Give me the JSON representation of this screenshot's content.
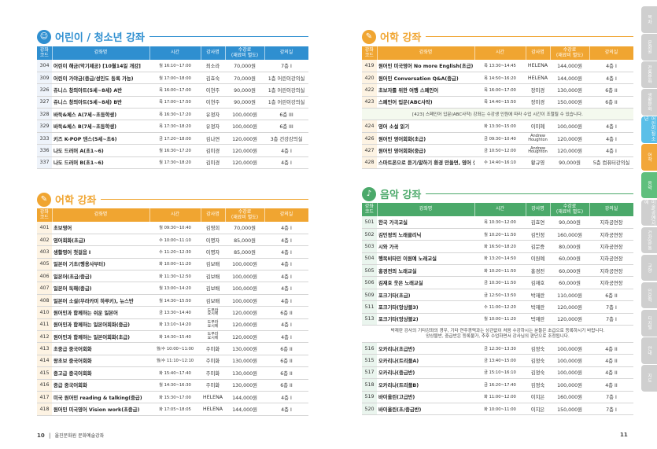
{
  "left": {
    "youth": {
      "title": "어린이 / 청소년 강좌",
      "headers": [
        "강좌\n코드",
        "강좌명",
        "시간",
        "강사명",
        "수강료\n(재료비 별도)",
        "강의실"
      ],
      "rows": [
        [
          "304",
          "어린이 해금(악기제공) [10월14일 개강]",
          "월 16:10~17:00",
          "최소라",
          "70,000원",
          "7층 I"
        ],
        [
          "309",
          "어린이 가야금(중급/성인도 등록 가능)",
          "월 17:00~18:00",
          "김효숙",
          "70,000원",
          "1층 어린이강의실"
        ],
        [
          "326",
          "쥬니스 창의아트(5세~8세) A반",
          "목 16:00~17:00",
          "이현주",
          "90,000원",
          "1층 어린이강의실"
        ],
        [
          "327",
          "쥬니스 창의아트(5세~8세) B반",
          "목 17:00~17:50",
          "이현주",
          "90,000원",
          "1층 어린이강의실"
        ],
        [
          "328",
          "바둑&체스 A(7세~초등학생)",
          "목 16:30~17:20",
          "유정자",
          "100,000원",
          "6층 III"
        ],
        [
          "329",
          "바둑&체스 B(7세~초등학생)",
          "목 17:30~18:20",
          "유정자",
          "100,000원",
          "6층 III"
        ],
        [
          "333",
          "키즈 K-POP 댄스(5세~초6)",
          "금 17:20~18:00",
          "김나연",
          "120,000원",
          "3층 건강강의실"
        ],
        [
          "336",
          "나도 드러머 A(초1~6)",
          "월 16:30~17:20",
          "김미경",
          "120,000원",
          "4층 I"
        ],
        [
          "337",
          "나도 드러머 B(초1~6)",
          "월 17:30~18:20",
          "김미경",
          "120,000원",
          "4층 I"
        ]
      ]
    },
    "lang": {
      "title": "어학 강좌",
      "headers": [
        "강좌\n코드",
        "강좌명",
        "시간",
        "강사명",
        "수강료\n(재료비 별도)",
        "강의실"
      ],
      "rows": [
        [
          "401",
          "초보영어",
          "월 09:30~10:40",
          "김영희",
          "70,000원",
          "4층 I"
        ],
        [
          "402",
          "영어회화(초급)",
          "수 10:00~11:10",
          "이명자",
          "85,000원",
          "4층 I"
        ],
        [
          "403",
          "생활영어 첫걸음 I",
          "수 11:20~12:30",
          "이명자",
          "85,000원",
          "4층 I"
        ],
        [
          "405",
          "일본어 기초(행용사부터)",
          "화 10:00~11:20",
          "김보배",
          "100,000원",
          "4층 I"
        ],
        [
          "406",
          "일본어(초급/중급)",
          "화 11:30~12:50",
          "김보배",
          "100,000원",
          "4층 I"
        ],
        [
          "407",
          "일본어 독해(중급)",
          "월 13:00~14:20",
          "김보배",
          "100,000원",
          "4층 I"
        ],
        [
          "408",
          "일본어 소설(무라카미 하루키), 뉴스반",
          "월 14:30~15:50",
          "김보배",
          "100,000원",
          "4층 I"
        ],
        [
          "410",
          "원어민과 함께하는 쉬운 일본어",
          "금 13:30~14:40",
          "도무라\n요시에",
          "120,000원",
          "6층 II"
        ],
        [
          "411",
          "원어민과 함께하는 일본어회화(중급)",
          "화 13:10~14:20",
          "도무라\n요시에",
          "120,000원",
          "4층 I"
        ],
        [
          "412",
          "원어민과 함께하는 일본어회화(초급)",
          "화 14:30~15:40",
          "도무라\n요시에",
          "120,000원",
          "4층 I"
        ],
        [
          "413",
          "초중급 중국어회화",
          "월/수 10:00~11:00",
          "주미화",
          "130,000원",
          "6층 II"
        ],
        [
          "414",
          "왕초보 중국어회화",
          "월/수 11:10~12:10",
          "주미화",
          "130,000원",
          "6층 II"
        ],
        [
          "415",
          "중고급 중국어회화",
          "화 15:40~17:40",
          "주미화",
          "130,000원",
          "6층 II"
        ],
        [
          "416",
          "중급 중국어회화",
          "월 14:30~16:30",
          "주미화",
          "130,000원",
          "6층 II"
        ],
        [
          "417",
          "미국 원어민 reading & talking(중급)",
          "화 15:30~17:00",
          "HELENA",
          "144,000원",
          "4층 I"
        ],
        [
          "418",
          "원어민 미국영어 Vision work(초중급)",
          "화 17:05~18:05",
          "HELENA",
          "144,000원",
          "4층 I"
        ]
      ]
    },
    "page_num": "10",
    "org": "울진문화원 문화예술강좌"
  },
  "right": {
    "lang2": {
      "title": "어학 강좌",
      "headers": [
        "강좌\n코드",
        "강좌명",
        "시간",
        "강사명",
        "수강료\n(재료비 별도)",
        "강의실"
      ],
      "rows": [
        [
          "419",
          "원어민 미국영어 No more English(초급)",
          "목 13:30~14:45",
          "HELENA",
          "144,000원",
          "4층 I"
        ],
        [
          "420",
          "원어민 Conversation Q&A(중급)",
          "목 14:50~16:20",
          "HELENA",
          "144,000원",
          "4층 I"
        ],
        [
          "422",
          "초보자를 위한 여행 스페인어",
          "목 16:00~17:00",
          "장미경",
          "130,000원",
          "6층 II"
        ],
        [
          "423",
          "스페인어 입문(ABC사작)",
          "목 14:40~15:50",
          "장미경",
          "150,000원",
          "6층 II"
        ]
      ],
      "note": "[423] 스페인어 입문(ABC사작) 강좌는 수강생 인원에 따라 수업 시간이 조절될 수 있습니다.",
      "rows2": [
        [
          "424",
          "영어 소설 읽기",
          "화 13:30~15:00",
          "이미혜",
          "100,000원",
          "4층 I"
        ],
        [
          "426",
          "원어민 영어회화(초급)",
          "금 09:30~10:40",
          "Andrew\nHoughton",
          "120,000원",
          "4층 I"
        ],
        [
          "427",
          "원어민 영어회화(중급)",
          "금 10:50~12:00",
          "Andrew\nHoughton",
          "120,000원",
          "4층 I"
        ],
        [
          "428",
          "스마트폰으로 듣기/말하기 환경 만들면, 영어 실력 쑥쑥!",
          "수 14:40~16:10",
          "황규영",
          "90,000원",
          "5층 컴퓨터강의실"
        ]
      ]
    },
    "music": {
      "title": "음악 강좌",
      "headers": [
        "강좌\n코드",
        "강좌명",
        "시간",
        "강사명",
        "수강료\n(재료비 별도)",
        "강의실"
      ],
      "rows": [
        [
          "501",
          "한국 가곡교실",
          "목 10:30~12:00",
          "김효연",
          "90,000원",
          "지하공연장"
        ],
        [
          "502",
          "김민정의 노래클리닉",
          "월 10:20~11:50",
          "김민정",
          "160,000원",
          "지하공연장"
        ],
        [
          "503",
          "시와 가곡",
          "화 16:50~18:20",
          "김문증",
          "80,000원",
          "지하공연장"
        ],
        [
          "504",
          "행복비타민 이원예 노래교실",
          "화 13:20~14:50",
          "이원예",
          "60,000원",
          "지하공연장"
        ],
        [
          "505",
          "홍경전의 노래교실",
          "화 10:20~11:50",
          "홍경전",
          "60,000원",
          "지하공연장"
        ],
        [
          "506",
          "김재호 웃은 노래교실",
          "금 10:30~11:50",
          "김재호",
          "60,000원",
          "지하공연장"
        ],
        [
          "509",
          "포크기타(초급)",
          "금 12:50~13:50",
          "박재란",
          "110,000원",
          "6층 II"
        ],
        [
          "511",
          "포크기타(앙상블3)",
          "수 11:00~12:20",
          "박재란",
          "120,000원",
          "7층 I"
        ],
        [
          "513",
          "포크기타(앙상블2)",
          "월 10:00~11:20",
          "박재란",
          "120,000원",
          "7층 I"
        ]
      ],
      "note": "박재란 강사의 기타강좌의 경우, 기타 연주경력과는 상관없이 처음 수강하시는 분들은 초급으로 등록하시기 바랍니다.\n앙상블반, 중급반은 등록불가, 추후 수업하면서 강사님의 판단으로 조정됩니다.",
      "rows2": [
        [
          "516",
          "오카리나(초급반)",
          "금 12:30~13:30",
          "김정숙",
          "100,000원",
          "4층 II"
        ],
        [
          "515",
          "오카리나(트리플A)",
          "금 13:40~15:00",
          "김정숙",
          "100,000원",
          "4층 II"
        ],
        [
          "517",
          "오카리나(중급반)",
          "금 15:10~16:10",
          "김정숙",
          "100,000원",
          "4층 II"
        ],
        [
          "518",
          "오카리나(트리플B)",
          "금 16:20~17:40",
          "김정숙",
          "100,000원",
          "4층 II"
        ],
        [
          "519",
          "바이올린(고급반)",
          "화 11:00~12:00",
          "이지은",
          "160,000원",
          "7층 I"
        ],
        [
          "520",
          "바이올린(초/중급반)",
          "화 10:00~11:00",
          "이지은",
          "150,000원",
          "7층 I"
        ]
      ]
    },
    "page_num": "11"
  },
  "sidetabs": [
    "목차",
    "문화원",
    "전통문화",
    "생활문화",
    "어린이/청소년",
    "어학",
    "음악",
    "미술/공예/서예",
    "건강/운동",
    "교양",
    "인문학",
    "디지털",
    "안내",
    "지도"
  ],
  "colors": {
    "youth": "#2f8fd0",
    "lang": "#f0a531",
    "music": "#4ba96a",
    "youth_code": "#eef3fa",
    "lang_code": "#fdf3e3",
    "music_code": "#eaf5ee"
  }
}
